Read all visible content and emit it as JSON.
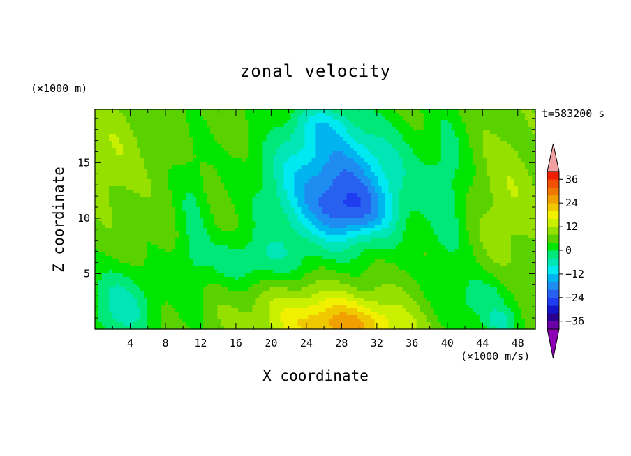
{
  "chart_data": {
    "type": "heatmap",
    "title": "zonal velocity",
    "xlabel": "X coordinate",
    "ylabel": "Z coordinate",
    "x_unit_label": "(×1000 m/s)",
    "y_unit_label": "(×1000 m)",
    "time_label": "t=583200 s",
    "xlim": [
      0,
      50
    ],
    "ylim": [
      0,
      19.8
    ],
    "x_ticks": [
      4,
      8,
      12,
      16,
      20,
      24,
      28,
      32,
      36,
      40,
      44,
      48
    ],
    "y_ticks": [
      5,
      10,
      15
    ],
    "colorbar": {
      "levels": [
        -40,
        -36,
        -32,
        -28,
        -24,
        -20,
        -16,
        -12,
        -8,
        -4,
        0,
        4,
        8,
        12,
        16,
        20,
        24,
        28,
        32,
        36,
        40
      ],
      "tick_labels": [
        "36",
        "24",
        "12",
        "0",
        "-12",
        "-24",
        "-36"
      ],
      "tick_values": [
        36,
        24,
        12,
        0,
        -12,
        -24,
        -36
      ],
      "colors": [
        "#6b00a8",
        "#2a0090",
        "#1414c8",
        "#1e3cf0",
        "#2860f0",
        "#1e8cf0",
        "#00b4f0",
        "#00e8f0",
        "#00e6b4",
        "#00e878",
        "#00e600",
        "#5ad200",
        "#96e000",
        "#c8f000",
        "#f0f000",
        "#f0c800",
        "#f0a000",
        "#f07800",
        "#f05000",
        "#f01e00"
      ],
      "under_color": "#8c00b4",
      "over_color": "#f0a0a0"
    },
    "field_description_points": [
      {
        "x": 28.5,
        "z": 0.3,
        "value": 22
      },
      {
        "x": 28,
        "z": 1.5,
        "value": 14
      },
      {
        "x": 29.5,
        "z": 10.5,
        "value": -26
      },
      {
        "x": 25,
        "z": 14,
        "value": -22
      },
      {
        "x": 26,
        "z": 18.5,
        "value": -16
      },
      {
        "x": 46,
        "z": 0.5,
        "value": -14
      },
      {
        "x": 2,
        "z": 2,
        "value": -10
      },
      {
        "x": 3,
        "z": 16,
        "value": 8
      },
      {
        "x": 47,
        "z": 12,
        "value": 8
      }
    ]
  }
}
